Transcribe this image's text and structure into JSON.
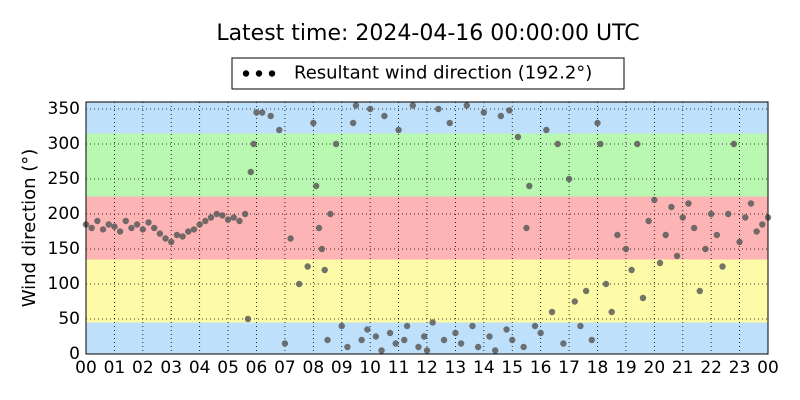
{
  "chart_data": {
    "type": "scatter",
    "title": "Latest time: 2024-04-16 00:00:00 UTC",
    "y_label": "Wind direction (°)",
    "xlim": [
      0,
      24
    ],
    "xticks": [
      {
        "value": 0,
        "label": "00"
      },
      {
        "value": 1,
        "label": "01"
      },
      {
        "value": 2,
        "label": "02"
      },
      {
        "value": 3,
        "label": "03"
      },
      {
        "value": 4,
        "label": "04"
      },
      {
        "value": 5,
        "label": "05"
      },
      {
        "value": 6,
        "label": "06"
      },
      {
        "value": 7,
        "label": "07"
      },
      {
        "value": 8,
        "label": "08"
      },
      {
        "value": 9,
        "label": "09"
      },
      {
        "value": 10,
        "label": "10"
      },
      {
        "value": 11,
        "label": "11"
      },
      {
        "value": 12,
        "label": "12"
      },
      {
        "value": 13,
        "label": "13"
      },
      {
        "value": 14,
        "label": "14"
      },
      {
        "value": 15,
        "label": "15"
      },
      {
        "value": 16,
        "label": "16"
      },
      {
        "value": 17,
        "label": "17"
      },
      {
        "value": 18,
        "label": "18"
      },
      {
        "value": 19,
        "label": "19"
      },
      {
        "value": 20,
        "label": "20"
      },
      {
        "value": 21,
        "label": "21"
      },
      {
        "value": 22,
        "label": "22"
      },
      {
        "value": 23,
        "label": "23"
      },
      {
        "value": 24,
        "label": "00"
      }
    ],
    "ylim": [
      0,
      360
    ],
    "yticks": [
      0,
      50,
      100,
      150,
      200,
      250,
      300,
      350
    ],
    "grid": true,
    "legend": "upper center",
    "bands": [
      {
        "from": 0,
        "to": 45,
        "color": "#bfe0fa"
      },
      {
        "from": 45,
        "to": 135,
        "color": "#fdfaa8"
      },
      {
        "from": 135,
        "to": 225,
        "color": "#fdb4b4"
      },
      {
        "from": 225,
        "to": 315,
        "color": "#b8f8b0"
      },
      {
        "from": 315,
        "to": 360,
        "color": "#bfe0fa"
      }
    ],
    "series": [
      {
        "name": "Resultant wind direction (192.2°)",
        "color": "#5a5a5a",
        "x": [
          0,
          0.2,
          0.4,
          0.6,
          0.8,
          1,
          1.2,
          1.4,
          1.6,
          1.8,
          2,
          2.2,
          2.4,
          2.6,
          2.8,
          3,
          3.2,
          3.4,
          3.6,
          3.8,
          4,
          4.2,
          4.4,
          4.6,
          4.8,
          5,
          5.2,
          5.4,
          5.6,
          5.7,
          5.8,
          5.9,
          6,
          6.2,
          6.5,
          6.8,
          7,
          7.2,
          7.5,
          7.8,
          8,
          8.1,
          8.2,
          8.3,
          8.4,
          8.5,
          8.6,
          8.8,
          9,
          9.2,
          9.4,
          9.5,
          9.7,
          9.9,
          10,
          10.2,
          10.4,
          10.5,
          10.7,
          10.9,
          11,
          11.2,
          11.3,
          11.5,
          11.7,
          11.9,
          12,
          12.2,
          12.4,
          12.6,
          12.8,
          13,
          13.2,
          13.4,
          13.6,
          13.8,
          14,
          14.2,
          14.4,
          14.6,
          14.8,
          14.9,
          15,
          15.2,
          15.4,
          15.5,
          15.6,
          15.8,
          16,
          16.2,
          16.4,
          16.6,
          16.8,
          17,
          17.2,
          17.4,
          17.6,
          17.8,
          18,
          18.1,
          18.3,
          18.5,
          18.7,
          19,
          19.2,
          19.4,
          19.6,
          19.8,
          20,
          20.2,
          20.4,
          20.6,
          20.8,
          21,
          21.2,
          21.4,
          21.6,
          21.8,
          22,
          22.2,
          22.4,
          22.6,
          22.8,
          23,
          23.2,
          23.4,
          23.6,
          23.8,
          24
        ],
        "values": [
          185,
          180,
          190,
          178,
          185,
          182,
          175,
          190,
          180,
          185,
          178,
          188,
          180,
          172,
          165,
          160,
          170,
          168,
          175,
          178,
          185,
          190,
          195,
          200,
          198,
          192,
          195,
          190,
          200,
          50,
          260,
          300,
          345,
          345,
          340,
          320,
          15,
          165,
          100,
          125,
          330,
          240,
          180,
          150,
          120,
          20,
          200,
          300,
          40,
          10,
          330,
          355,
          20,
          35,
          350,
          25,
          5,
          340,
          30,
          15,
          320,
          20,
          40,
          355,
          10,
          25,
          5,
          45,
          350,
          20,
          330,
          30,
          15,
          355,
          40,
          10,
          345,
          25,
          5,
          340,
          35,
          348,
          20,
          310,
          10,
          180,
          240,
          40,
          30,
          320,
          60,
          300,
          15,
          250,
          75,
          40,
          90,
          20,
          330,
          300,
          100,
          60,
          170,
          150,
          120,
          300,
          80,
          190,
          220,
          130,
          170,
          210,
          140,
          195,
          215,
          180,
          90,
          150,
          200,
          170,
          125,
          200,
          300,
          160,
          195,
          215,
          175,
          185,
          195
        ]
      }
    ]
  }
}
